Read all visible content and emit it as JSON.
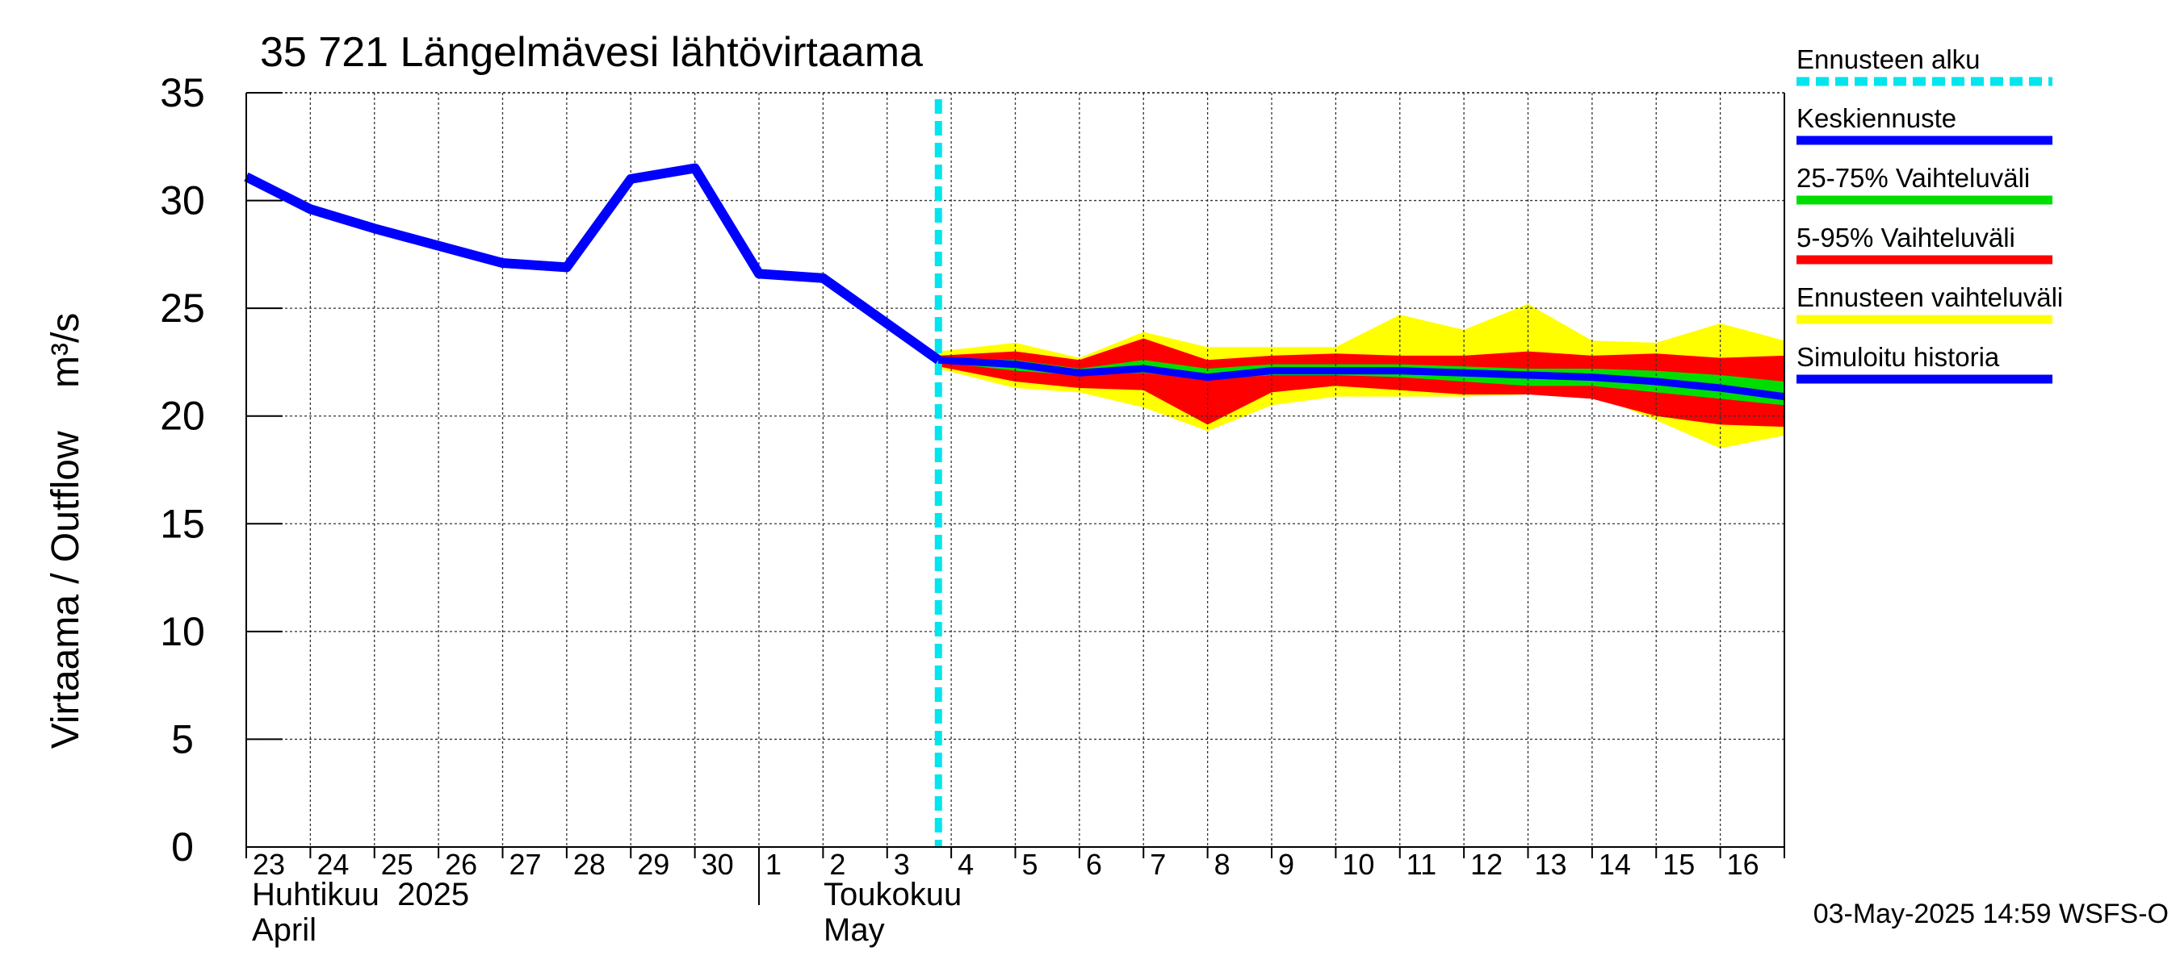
{
  "chart_data": {
    "type": "area",
    "title": "35 721 Längelmävesi lähtövirtaama",
    "ylabel": "Virtaama / Outflow    m³/s",
    "ylim": [
      0,
      35
    ],
    "yticks": [
      0,
      5,
      10,
      15,
      20,
      25,
      30,
      35
    ],
    "grid": true,
    "legend_position": "right",
    "x_day_range": [
      23,
      47
    ],
    "x_tick_labels": [
      "23",
      "24",
      "25",
      "26",
      "27",
      "28",
      "29",
      "30",
      "1",
      "2",
      "3",
      "4",
      "5",
      "6",
      "7",
      "8",
      "9",
      "10",
      "11",
      "12",
      "13",
      "14",
      "15",
      "16"
    ],
    "month_labels": [
      {
        "line1": "Huhtikuu  2025",
        "line2": "April"
      },
      {
        "line1": "Toukokuu",
        "line2": "May"
      }
    ],
    "forecast_start_day": 33.8,
    "timestamp": "03-May-2025 14:59 WSFS-O",
    "legend": [
      {
        "label": "Ennusteen alku",
        "color": "#00e5ee",
        "style": "dashed"
      },
      {
        "label": "Keskiennuste",
        "color": "#0000ff",
        "style": "solid"
      },
      {
        "label": "25-75% Vaihteluväli",
        "color": "#00dd00",
        "style": "solid"
      },
      {
        "label": "5-95% Vaihteluväli",
        "color": "#ff0000",
        "style": "solid"
      },
      {
        "label": "Ennusteen vaihteluväli",
        "color": "#ffff00",
        "style": "solid"
      },
      {
        "label": "Simuloitu historia",
        "color": "#0000ff",
        "style": "solid"
      }
    ],
    "colors": {
      "history": "#0000ff",
      "median": "#0000ff",
      "iqr": "#00dd00",
      "p5_95": "#ff0000",
      "envelope": "#ffff00",
      "forecast_start": "#00e5ee"
    },
    "history": {
      "x": [
        23,
        24,
        25,
        26,
        27,
        28,
        29,
        30,
        31,
        32,
        33.8
      ],
      "y": [
        31.1,
        29.6,
        28.7,
        27.9,
        27.1,
        26.9,
        31.0,
        31.5,
        26.6,
        26.4,
        22.6
      ]
    },
    "forecast": {
      "x": [
        33.8,
        35,
        36,
        37,
        38,
        39,
        40,
        41,
        42,
        43,
        44,
        45,
        46,
        47
      ],
      "envelope_hi": [
        23.0,
        23.4,
        22.7,
        23.9,
        23.2,
        23.2,
        23.2,
        24.7,
        24.0,
        25.2,
        23.5,
        23.4,
        24.3,
        23.5
      ],
      "envelope_lo": [
        22.2,
        21.3,
        21.1,
        20.4,
        19.3,
        20.5,
        20.9,
        20.9,
        20.9,
        21.0,
        21.0,
        19.8,
        18.5,
        19.1
      ],
      "p95": [
        22.8,
        23.0,
        22.6,
        23.6,
        22.6,
        22.8,
        22.9,
        22.8,
        22.8,
        23.0,
        22.8,
        22.9,
        22.7,
        22.8
      ],
      "p5": [
        22.3,
        21.6,
        21.3,
        21.2,
        19.6,
        21.1,
        21.4,
        21.2,
        21.0,
        21.0,
        20.8,
        20.0,
        19.6,
        19.5
      ],
      "p75": [
        22.7,
        22.6,
        22.2,
        22.6,
        22.2,
        22.4,
        22.4,
        22.4,
        22.3,
        22.2,
        22.2,
        22.1,
        21.9,
        21.6
      ],
      "p25": [
        22.5,
        22.1,
        21.9,
        22.0,
        21.7,
        21.9,
        21.9,
        21.8,
        21.6,
        21.4,
        21.4,
        21.1,
        20.8,
        20.5
      ],
      "median": [
        22.6,
        22.4,
        22.0,
        22.2,
        21.8,
        22.1,
        22.1,
        22.1,
        22.0,
        21.9,
        21.8,
        21.6,
        21.3,
        20.9
      ],
      "x_end": 47
    }
  }
}
